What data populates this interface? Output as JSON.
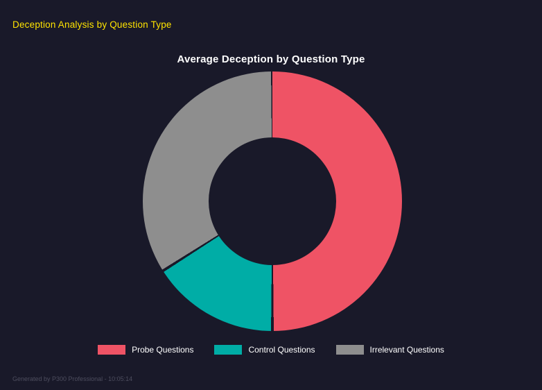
{
  "header": {
    "title": "Deception Analysis by Question Type"
  },
  "footer": {
    "text": "Generated by P300 Professional - 10:05:14"
  },
  "colors": {
    "background": "#191929",
    "header_text": "#ffe400",
    "chart_title_text": "#ffffff",
    "legend_text": "#ffffff",
    "footer_text": "#4d4d5e"
  },
  "chart_data": {
    "type": "pie",
    "donut": true,
    "cutout_ratio": 0.49,
    "title": "Average Deception by Question Type",
    "labels": [
      "Probe Questions",
      "Control Questions",
      "Irrelevant Questions"
    ],
    "values": [
      50,
      16,
      34
    ],
    "values_note": "estimated percent of circle, clockwise from top",
    "colors": [
      "#ef5365",
      "#00ada6",
      "#8e8e8e"
    ],
    "legend_position": "bottom"
  }
}
